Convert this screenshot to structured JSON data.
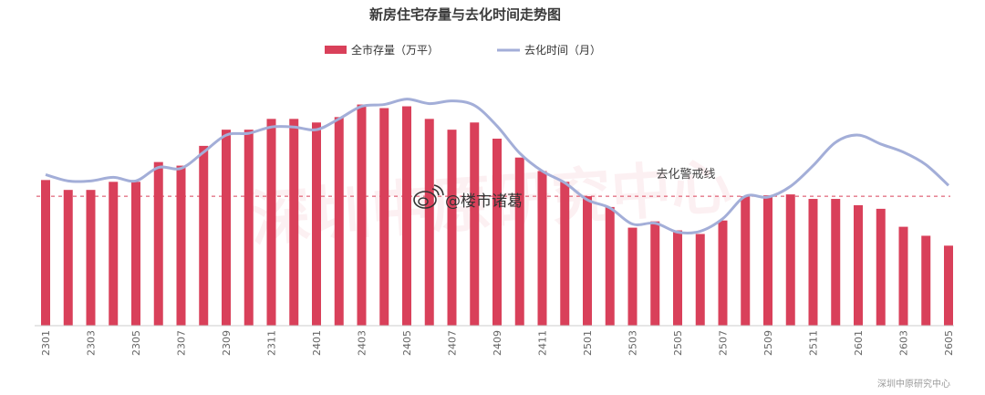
{
  "chart_data": {
    "type": "bar",
    "title": "新房住宅存量与去化时间走势图",
    "x": [
      "2301",
      "2302",
      "2303",
      "2304",
      "2305",
      "2306",
      "2307",
      "2308",
      "2309",
      "2310",
      "2311",
      "2312",
      "2401",
      "2402",
      "2403",
      "2404",
      "2405",
      "2406",
      "2407",
      "2408",
      "2409",
      "2410",
      "2411",
      "2412",
      "2501",
      "2502",
      "2503",
      "2504",
      "2505",
      "2506",
      "2507",
      "2508",
      "2509",
      "2510",
      "2511",
      "2512",
      "2601",
      "2602",
      "2603",
      "2604",
      "2605"
    ],
    "tick_labels": [
      "2301",
      "2303",
      "2305",
      "2307",
      "2309",
      "2311",
      "2401",
      "2403",
      "2405",
      "2407",
      "2409",
      "2411",
      "2501",
      "2503",
      "2505",
      "2507",
      "2509",
      "2511",
      "2601",
      "2603",
      "2605"
    ],
    "series": [
      {
        "name": "全市存量（万平）",
        "type": "bar",
        "color": "#d9405a",
        "values": [
          810,
          755,
          755,
          800,
          800,
          910,
          890,
          1000,
          1090,
          1090,
          1150,
          1150,
          1130,
          1160,
          1230,
          1210,
          1220,
          1150,
          1090,
          1130,
          1040,
          935,
          860,
          800,
          720,
          660,
          545,
          580,
          530,
          510,
          585,
          720,
          725,
          730,
          705,
          705,
          670,
          650,
          550,
          500,
          445
        ]
      },
      {
        "name": "去化时间（月）",
        "type": "line",
        "smooth": true,
        "color": "#a3aed8",
        "values": [
          840,
          805,
          805,
          825,
          805,
          880,
          875,
          965,
          1060,
          1070,
          1105,
          1105,
          1090,
          1150,
          1220,
          1230,
          1260,
          1235,
          1250,
          1225,
          1110,
          960,
          860,
          795,
          700,
          655,
          565,
          570,
          520,
          525,
          595,
          720,
          715,
          775,
          890,
          1020,
          1060,
          1010,
          965,
          895,
          780
        ]
      }
    ],
    "threshold": {
      "label": "去化警戒线",
      "value": 720,
      "color": "#d9405a",
      "style": "dashed"
    },
    "ylim": [
      0,
      1380
    ],
    "legend": "top-center",
    "grid": false,
    "xlabel": "",
    "ylabel": ""
  },
  "watermark": {
    "text": "@楼市诸葛",
    "icon": "weibo-logo-icon"
  },
  "background_watermark": "深圳中原研究中心",
  "source_note": "深圳中原研究中心"
}
